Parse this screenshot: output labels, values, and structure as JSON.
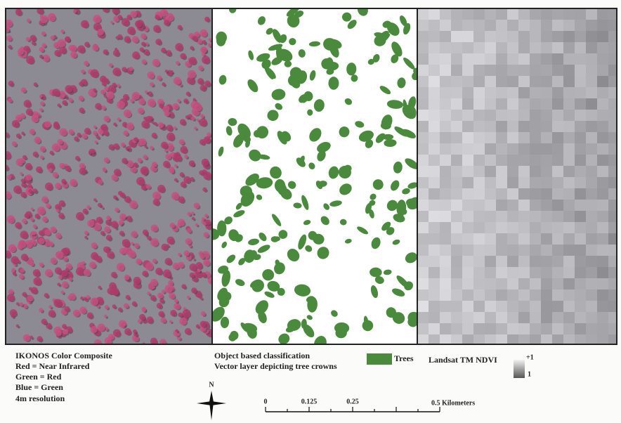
{
  "panels": {
    "ikonos": {
      "title": "IKONOS Color Composite",
      "lines": [
        "Red = Near Infrared",
        "Green = Red",
        "Blue = Green",
        "4m resolution"
      ]
    },
    "classification": {
      "title": "Object based classification",
      "subtitle": "Vector layer depicting tree crowns",
      "legend": "Trees"
    },
    "ndvi": {
      "title": "Landsat TM NDVI",
      "max_label": "+1",
      "min_label": "1"
    }
  },
  "north_arrow": "N",
  "scale_bar": {
    "labels": [
      "0",
      "0.125",
      "0.25"
    ],
    "end_label": "0.5 Kilometers"
  }
}
